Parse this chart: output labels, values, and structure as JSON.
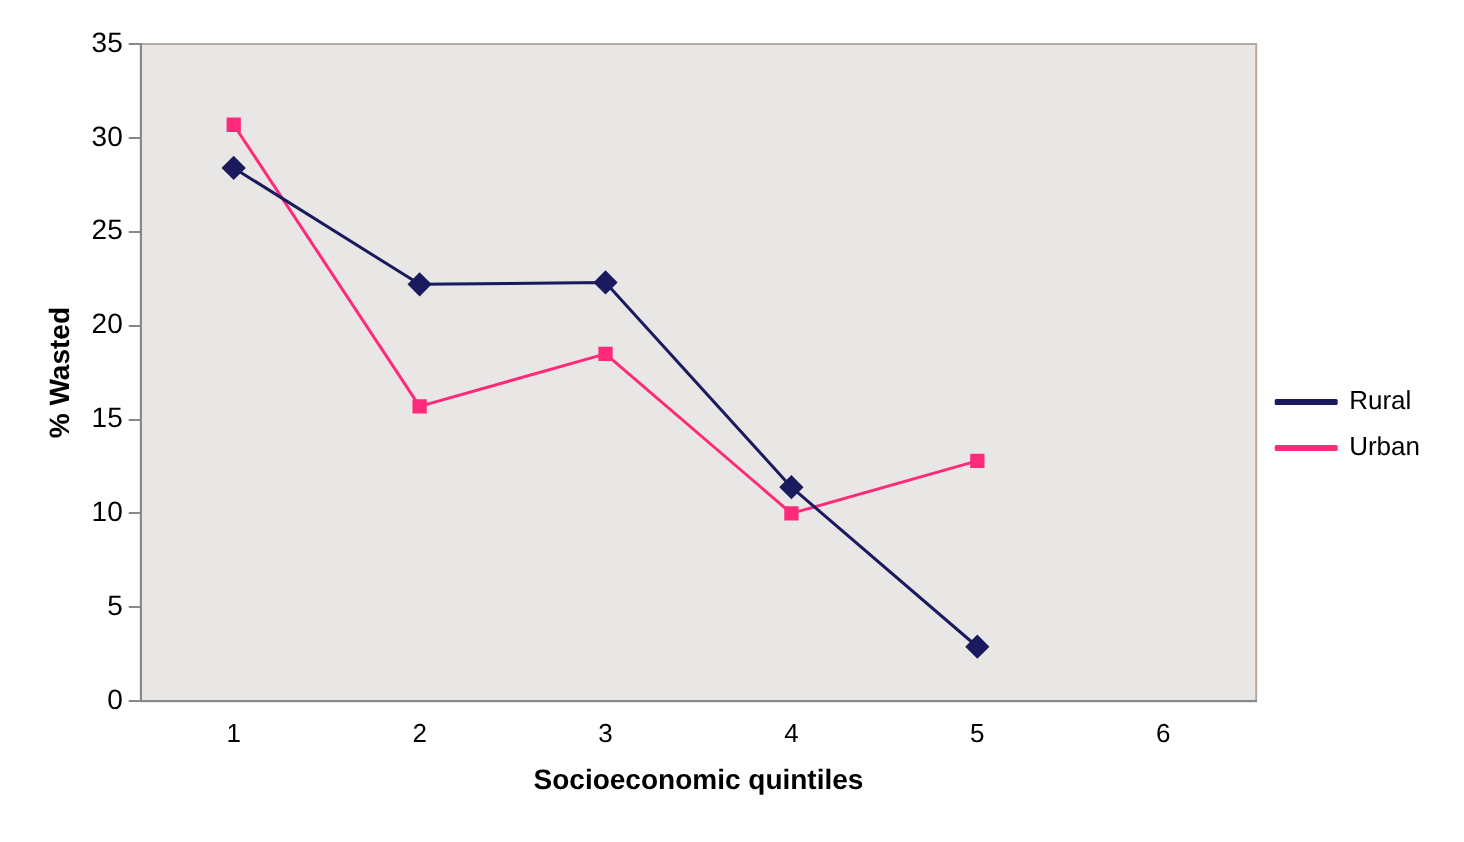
{
  "chart_data": {
    "type": "line",
    "xlabel": "Socioeconomic quintiles",
    "ylabel": "% Wasted",
    "categories": [
      "1",
      "2",
      "3",
      "4",
      "5",
      "6"
    ],
    "series": [
      {
        "name": "Rural",
        "color": "#1a1a5e",
        "marker": "diamond",
        "values": [
          28.4,
          22.2,
          22.3,
          11.4,
          2.9,
          null
        ]
      },
      {
        "name": "Urban",
        "color": "#ff2a7a",
        "marker": "square",
        "values": [
          30.7,
          15.7,
          18.5,
          10.0,
          12.8,
          null
        ]
      }
    ],
    "ylim": [
      0,
      35
    ],
    "yticks": [
      0,
      5,
      10,
      15,
      20,
      25,
      30,
      35
    ],
    "grid": false,
    "legend": "right"
  }
}
